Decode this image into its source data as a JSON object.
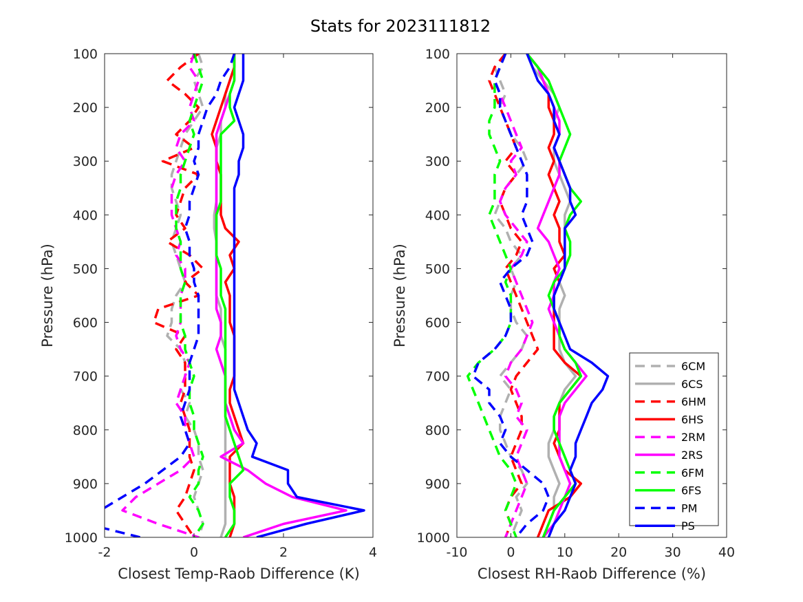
{
  "chart_data": {
    "title": "Stats for 2023111812",
    "y_pressure_levels": [
      100,
      125,
      150,
      175,
      200,
      225,
      250,
      275,
      300,
      325,
      350,
      375,
      400,
      425,
      450,
      475,
      500,
      525,
      550,
      575,
      600,
      625,
      650,
      675,
      700,
      725,
      750,
      775,
      800,
      825,
      850,
      875,
      900,
      925,
      950,
      975,
      1000
    ],
    "series_styles": [
      {
        "name": "6CM",
        "color": "#b0b0b0",
        "dashed": true
      },
      {
        "name": "6CS",
        "color": "#b0b0b0",
        "dashed": false
      },
      {
        "name": "6HM",
        "color": "#ff0000",
        "dashed": true
      },
      {
        "name": "6HS",
        "color": "#ff0000",
        "dashed": false
      },
      {
        "name": "2RM",
        "color": "#ff00ff",
        "dashed": true
      },
      {
        "name": "2RS",
        "color": "#ff00ff",
        "dashed": false
      },
      {
        "name": "6FM",
        "color": "#00ff00",
        "dashed": true
      },
      {
        "name": "6FS",
        "color": "#00ff00",
        "dashed": false
      },
      {
        "name": "PM",
        "color": "#0000ff",
        "dashed": true
      },
      {
        "name": "PS",
        "color": "#0000ff",
        "dashed": false
      }
    ],
    "panels": [
      {
        "type": "line",
        "xlabel": "Closest Temp-Raob Difference (K)",
        "ylabel": "Pressure (hPa)",
        "xlim": [
          -2,
          4
        ],
        "ylim": [
          1000,
          100
        ],
        "xticks": [
          -2,
          0,
          2,
          4
        ],
        "yticks": [
          100,
          200,
          300,
          400,
          500,
          600,
          700,
          800,
          900,
          1000
        ],
        "series": [
          {
            "name": "6CM",
            "x": [
              0.1,
              0.2,
              0.0,
              0.1,
              0.2,
              0.0,
              -0.2,
              -0.3,
              -0.4,
              -0.5,
              -0.5,
              -0.4,
              -0.3,
              -0.4,
              -0.5,
              -0.4,
              -0.3,
              -0.2,
              -0.4,
              -0.5,
              -0.5,
              -0.6,
              -0.3,
              -0.2,
              -0.2,
              -0.3,
              -0.1,
              -0.2,
              0.0,
              0.1,
              0.1,
              0.2,
              0.1,
              0.0,
              0.1,
              0.2,
              0.1
            ]
          },
          {
            "name": "6CS",
            "x": [
              0.9,
              0.9,
              0.8,
              0.7,
              0.7,
              0.6,
              0.6,
              0.5,
              0.5,
              0.5,
              0.5,
              0.5,
              0.45,
              0.45,
              0.5,
              0.5,
              0.5,
              0.5,
              0.5,
              0.6,
              0.6,
              0.6,
              0.7,
              0.7,
              0.7,
              0.7,
              0.7,
              0.7,
              0.7,
              0.7,
              0.7,
              0.7,
              0.7,
              0.7,
              0.7,
              0.7,
              0.6
            ]
          },
          {
            "name": "6HM",
            "x": [
              0.1,
              -0.3,
              -0.6,
              -0.2,
              0.1,
              -0.1,
              -0.4,
              0.0,
              -0.7,
              0.1,
              -0.2,
              -0.3,
              -0.4,
              -0.2,
              -0.6,
              -0.1,
              0.2,
              -0.2,
              0.1,
              -0.8,
              -0.9,
              -0.2,
              -0.4,
              -0.2,
              -0.2,
              -0.2,
              -0.3,
              -0.2,
              -0.1,
              -0.1,
              -0.1,
              0.0,
              -0.1,
              -0.2,
              -0.4,
              -0.2,
              0.0
            ]
          },
          {
            "name": "6HS",
            "x": [
              0.9,
              0.9,
              0.8,
              0.7,
              0.6,
              0.5,
              0.4,
              0.5,
              0.5,
              0.6,
              0.6,
              0.6,
              0.6,
              0.7,
              1.0,
              0.8,
              0.9,
              0.7,
              0.8,
              0.8,
              0.8,
              0.9,
              0.9,
              0.9,
              0.9,
              0.8,
              0.8,
              0.9,
              1.0,
              1.1,
              0.8,
              0.8,
              0.8,
              0.9,
              0.9,
              0.9,
              0.8
            ]
          },
          {
            "name": "2RM",
            "x": [
              0.0,
              -0.1,
              0.1,
              0.0,
              -0.1,
              0.0,
              -0.3,
              -0.4,
              -0.2,
              -0.4,
              -0.5,
              -0.5,
              -0.5,
              -0.4,
              -0.3,
              -0.4,
              -0.2,
              -0.2,
              -0.3,
              -0.3,
              -0.3,
              -0.4,
              -0.3,
              -0.1,
              -0.2,
              -0.3,
              -0.4,
              -0.2,
              -0.2,
              -0.1,
              0.0,
              -0.3,
              -0.8,
              -1.3,
              -1.6,
              -0.8,
              0.1
            ]
          },
          {
            "name": "2RS",
            "x": [
              0.9,
              0.9,
              0.9,
              0.8,
              0.7,
              0.6,
              0.5,
              0.5,
              0.5,
              0.5,
              0.5,
              0.5,
              0.5,
              0.5,
              0.5,
              0.5,
              0.5,
              0.5,
              0.5,
              0.5,
              0.6,
              0.6,
              0.5,
              0.6,
              0.7,
              0.7,
              0.7,
              0.8,
              0.9,
              1.1,
              0.6,
              1.2,
              1.6,
              2.2,
              3.4,
              2.0,
              1.1
            ]
          },
          {
            "name": "6FM",
            "x": [
              0.0,
              0.1,
              0.2,
              0.1,
              0.0,
              -0.1,
              0.0,
              -0.1,
              -0.2,
              -0.3,
              -0.3,
              -0.4,
              -0.4,
              -0.4,
              -0.3,
              -0.3,
              -0.3,
              -0.2,
              -0.3,
              -0.3,
              -0.3,
              -0.2,
              -0.2,
              -0.1,
              0.0,
              -0.1,
              -0.1,
              0.0,
              0.0,
              0.1,
              0.2,
              0.1,
              0.1,
              -0.1,
              0.1,
              0.2,
              0.0
            ]
          },
          {
            "name": "6FS",
            "x": [
              0.9,
              0.9,
              0.9,
              0.8,
              0.8,
              0.9,
              0.6,
              0.6,
              0.6,
              0.6,
              0.6,
              0.6,
              0.5,
              0.5,
              0.5,
              0.5,
              0.6,
              0.6,
              0.6,
              0.7,
              0.7,
              0.7,
              0.7,
              0.7,
              0.7,
              0.7,
              0.7,
              0.7,
              0.8,
              0.9,
              1.0,
              1.1,
              0.8,
              0.8,
              0.9,
              0.9,
              0.7
            ]
          },
          {
            "name": "PM",
            "x": [
              0.9,
              0.8,
              0.6,
              0.5,
              0.3,
              0.2,
              0.1,
              0.1,
              0.0,
              0.1,
              0.0,
              -0.1,
              -0.1,
              -0.2,
              -0.1,
              -0.1,
              0.0,
              0.0,
              0.1,
              0.1,
              0.1,
              0.1,
              0.0,
              -0.1,
              -0.1,
              -0.1,
              -0.2,
              -0.3,
              -0.2,
              -0.1,
              -0.3,
              -0.7,
              -1.1,
              -1.6,
              -2.1,
              -2.4,
              -1.2
            ]
          },
          {
            "name": "PS",
            "x": [
              1.1,
              1.1,
              1.1,
              1.0,
              0.9,
              1.0,
              1.1,
              1.1,
              1.0,
              1.0,
              0.9,
              0.9,
              0.9,
              0.9,
              0.9,
              0.9,
              0.9,
              0.9,
              0.9,
              0.9,
              0.9,
              0.9,
              0.9,
              0.9,
              0.9,
              0.9,
              1.0,
              1.1,
              1.2,
              1.4,
              1.3,
              2.1,
              2.1,
              2.3,
              3.8,
              2.5,
              1.4
            ]
          }
        ]
      },
      {
        "type": "line",
        "xlabel": "Closest RH-Raob Difference (%)",
        "ylabel": "Pressure (hPa)",
        "xlim": [
          -10,
          40
        ],
        "ylim": [
          1000,
          100
        ],
        "xticks": [
          -10,
          0,
          10,
          20,
          30,
          40
        ],
        "yticks": [
          100,
          200,
          300,
          400,
          500,
          600,
          700,
          800,
          900,
          1000
        ],
        "legend": {
          "position": "bottom-right",
          "entries": [
            "6CM",
            "6CS",
            "6HM",
            "6HS",
            "2RM",
            "2RS",
            "6FM",
            "6FS",
            "PM",
            "PS"
          ]
        },
        "series": [
          {
            "name": "6CM",
            "x": [
              -1,
              -3,
              -2,
              -1,
              -2,
              -1,
              0,
              2,
              3,
              1,
              -1,
              -2,
              -3,
              -1,
              0,
              2,
              0,
              1,
              0,
              0,
              1,
              3,
              2,
              0,
              -2,
              0,
              -1,
              -2,
              -2,
              -1,
              0,
              2,
              3,
              1,
              2,
              1,
              0
            ]
          },
          {
            "name": "6CS",
            "x": [
              3,
              4,
              6,
              8,
              9,
              8,
              9,
              8,
              8,
              9,
              10,
              11,
              10,
              10,
              10,
              10,
              8,
              9,
              10,
              9,
              9,
              9,
              9,
              10,
              12,
              10,
              9,
              8,
              8,
              7,
              7,
              8,
              9,
              8,
              8,
              7,
              6
            ]
          },
          {
            "name": "6HM",
            "x": [
              -1,
              -3,
              -4,
              -3,
              -2,
              -1,
              0,
              1,
              -1,
              1,
              -1,
              -2,
              -1,
              0,
              2,
              1,
              -1,
              0,
              1,
              2,
              3,
              4,
              5,
              3,
              1,
              0,
              1,
              2,
              2,
              1,
              0,
              1,
              2,
              0,
              -1,
              0,
              -1
            ]
          },
          {
            "name": "6HS",
            "x": [
              3,
              5,
              6,
              7,
              7,
              8,
              8,
              7,
              8,
              7,
              8,
              9,
              8,
              9,
              9,
              10,
              8,
              9,
              8,
              8,
              8,
              8,
              8,
              10,
              13,
              11,
              9,
              9,
              9,
              8,
              9,
              10,
              13,
              11,
              7,
              6,
              5
            ]
          },
          {
            "name": "2RM",
            "x": [
              -1,
              -2,
              -3,
              -2,
              -1,
              0,
              1,
              2,
              0,
              1,
              -1,
              -2,
              -1,
              1,
              3,
              2,
              0,
              1,
              2,
              3,
              4,
              3,
              2,
              0,
              -1,
              1,
              2,
              1,
              3,
              2,
              1,
              2,
              3,
              2,
              1,
              0,
              -1
            ]
          },
          {
            "name": "2RS",
            "x": [
              3,
              5,
              6,
              7,
              8,
              9,
              9,
              8,
              9,
              9,
              8,
              7,
              6,
              5,
              7,
              8,
              9,
              8,
              8,
              7,
              8,
              9,
              10,
              12,
              14,
              12,
              10,
              9,
              9,
              9,
              9,
              10,
              11,
              10,
              9,
              8,
              6
            ]
          },
          {
            "name": "6FM",
            "x": [
              -1,
              -2,
              -3,
              -3,
              -3,
              -4,
              -4,
              -3,
              -2,
              -3,
              -3,
              -3,
              -4,
              -3,
              -2,
              -1,
              0,
              -1,
              0,
              0,
              0,
              -1,
              -3,
              -6,
              -8,
              -7,
              -6,
              -5,
              -4,
              -3,
              -2,
              0,
              1,
              0,
              -1,
              0,
              1
            ]
          },
          {
            "name": "6FS",
            "x": [
              3,
              5,
              7,
              8,
              9,
              10,
              11,
              10,
              9,
              10,
              11,
              13,
              11,
              10,
              11,
              11,
              10,
              8,
              7,
              8,
              9,
              9,
              10,
              12,
              13,
              11,
              9,
              8,
              8,
              9,
              10,
              11,
              12,
              10,
              8,
              7,
              6
            ]
          },
          {
            "name": "PM",
            "x": [
              -1,
              -2,
              -3,
              -2,
              -2,
              -1,
              0,
              1,
              2,
              3,
              3,
              3,
              2,
              3,
              4,
              3,
              0,
              -2,
              -1,
              0,
              0,
              -1,
              -3,
              -6,
              -7,
              -4,
              -4,
              -2,
              -1,
              -2,
              0,
              3,
              6,
              7,
              6,
              3,
              1
            ]
          },
          {
            "name": "PS",
            "x": [
              3,
              4,
              5,
              7,
              8,
              8,
              9,
              8,
              9,
              10,
              11,
              11,
              12,
              10,
              10,
              10,
              10,
              9,
              8,
              8,
              9,
              10,
              11,
              15,
              18,
              17,
              15,
              14,
              13,
              12,
              12,
              11,
              12,
              11,
              10,
              8,
              7
            ]
          }
        ]
      }
    ]
  }
}
